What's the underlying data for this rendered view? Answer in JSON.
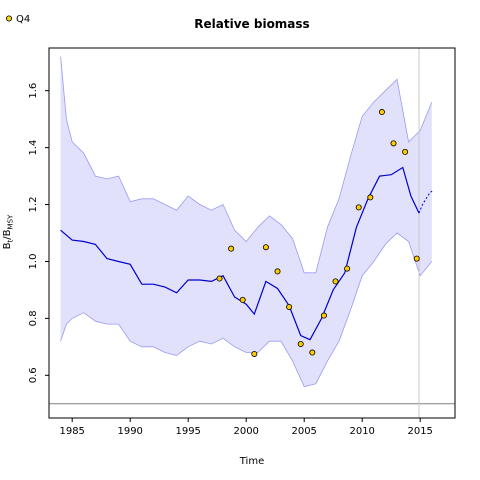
{
  "chart_data": {
    "type": "line",
    "title": "Relative biomass",
    "xlabel": "Time",
    "ylabel_main": "B",
    "ylabel_sub1": "t",
    "ylabel_slash": "/B",
    "ylabel_sub2": "MSY",
    "xlim": [
      1983,
      2018
    ],
    "ylim": [
      0.45,
      1.75
    ],
    "x_ticks": [
      1985,
      1990,
      1995,
      2000,
      2005,
      2010,
      2015
    ],
    "y_ticks": [
      0.6,
      0.8,
      1.0,
      1.2,
      1.4,
      1.6
    ],
    "reference_line_y": 0.5,
    "vertical_line_x": 2014.9,
    "grid": false,
    "legend": {
      "position": "top-left",
      "entries": [
        {
          "label": "Q4",
          "marker": "circle",
          "color": "#ffd700"
        }
      ]
    },
    "colors": {
      "median": "#0000cc",
      "band": "#e1e1fc",
      "band_edge": "#9a9af0",
      "points": "#ffcc00",
      "ref": "#808080",
      "vline": "#c8c8c8"
    },
    "series": [
      {
        "name": "Q4",
        "kind": "scatter",
        "x": [
          1997.7,
          1998.7,
          1999.7,
          2000.7,
          2001.7,
          2002.7,
          2003.7,
          2004.7,
          2005.7,
          2006.7,
          2007.7,
          2008.7,
          2009.7,
          2010.7,
          2011.7,
          2012.7,
          2013.7,
          2014.7
        ],
        "y": [
          0.94,
          1.045,
          0.865,
          0.675,
          1.05,
          0.965,
          0.84,
          0.71,
          0.68,
          0.81,
          0.93,
          0.975,
          1.19,
          1.225,
          1.525,
          1.415,
          1.385,
          1.01
        ]
      },
      {
        "kind": "median",
        "x": [
          1984,
          1985,
          1986,
          1987,
          1988,
          1989,
          1990,
          1991,
          1992,
          1993,
          1994,
          1995,
          1996,
          1997,
          1998,
          1999,
          2000,
          2000.7,
          2001.7,
          2002.7,
          2003.7,
          2004.7,
          2005.5,
          2006.5,
          2007.5,
          2008.5,
          2009.5,
          2010.5,
          2011.5,
          2012.5,
          2013.5,
          2014.2,
          2014.9
        ],
        "y": [
          1.11,
          1.075,
          1.07,
          1.06,
          1.01,
          1.0,
          0.99,
          0.92,
          0.92,
          0.91,
          0.89,
          0.935,
          0.935,
          0.93,
          0.95,
          0.875,
          0.85,
          0.815,
          0.93,
          0.905,
          0.845,
          0.74,
          0.725,
          0.8,
          0.9,
          0.96,
          1.12,
          1.22,
          1.3,
          1.305,
          1.33,
          1.23,
          1.17
        ]
      },
      {
        "kind": "forecast",
        "x": [
          2014.9,
          2015.2,
          2015.5,
          2015.8,
          2016.1
        ],
        "y": [
          1.17,
          1.2,
          1.22,
          1.24,
          1.25
        ]
      },
      {
        "kind": "band_upper",
        "x": [
          1984,
          1984.5,
          1985,
          1986,
          1987,
          1988,
          1989,
          1990,
          1991,
          1992,
          1993,
          1994,
          1995,
          1996,
          1997,
          1998,
          1999,
          2000,
          2001,
          2002,
          2003,
          2004,
          2005,
          2006,
          2007,
          2008,
          2009,
          2010,
          2011,
          2012,
          2013,
          2014,
          2015,
          2016
        ],
        "y": [
          1.72,
          1.5,
          1.42,
          1.38,
          1.3,
          1.29,
          1.3,
          1.21,
          1.22,
          1.22,
          1.2,
          1.18,
          1.23,
          1.2,
          1.18,
          1.2,
          1.11,
          1.07,
          1.12,
          1.16,
          1.13,
          1.08,
          0.96,
          0.96,
          1.12,
          1.22,
          1.37,
          1.51,
          1.56,
          1.6,
          1.64,
          1.42,
          1.46,
          1.56
        ]
      },
      {
        "kind": "band_lower",
        "x": [
          1984,
          1984.5,
          1985,
          1986,
          1987,
          1988,
          1989,
          1990,
          1991,
          1992,
          1993,
          1994,
          1995,
          1996,
          1997,
          1998,
          1999,
          2000,
          2001,
          2002,
          2003,
          2004,
          2005,
          2006,
          2007,
          2008,
          2009,
          2010,
          2011,
          2012,
          2013,
          2014,
          2015,
          2016
        ],
        "y": [
          0.72,
          0.78,
          0.8,
          0.82,
          0.79,
          0.78,
          0.78,
          0.72,
          0.7,
          0.7,
          0.68,
          0.67,
          0.7,
          0.72,
          0.71,
          0.73,
          0.7,
          0.68,
          0.68,
          0.72,
          0.72,
          0.65,
          0.56,
          0.57,
          0.65,
          0.72,
          0.83,
          0.95,
          1.0,
          1.06,
          1.1,
          1.07,
          0.95,
          1.0
        ]
      }
    ]
  }
}
